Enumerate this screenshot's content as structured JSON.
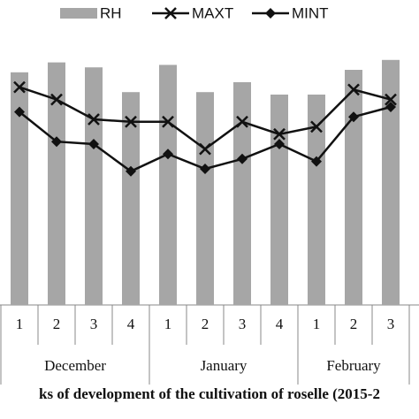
{
  "chart_data": {
    "type": "bar-line",
    "title": "ks of development of the cultivation of roselle (2015-2",
    "categories": [
      "1",
      "2",
      "3",
      "4",
      "1",
      "2",
      "3",
      "4",
      "1",
      "2",
      "3"
    ],
    "months": [
      {
        "name": "December",
        "count": 4
      },
      {
        "name": "January",
        "count": 4
      },
      {
        "name": "February",
        "count": 3
      }
    ],
    "ylim": [
      0,
      100
    ],
    "series": [
      {
        "name": "RH",
        "type": "bar",
        "color": "#a6a6a6",
        "values": [
          94,
          98,
          96,
          86,
          97,
          86,
          90,
          85,
          85,
          95,
          99
        ]
      },
      {
        "name": "MAXT",
        "type": "line",
        "marker": "x",
        "color": "#111111",
        "values": [
          88,
          83,
          75,
          74,
          74,
          63,
          74,
          69,
          72,
          87,
          83
        ]
      },
      {
        "name": "MINT",
        "type": "line",
        "marker": "diamond",
        "color": "#111111",
        "values": [
          78,
          66,
          65,
          54,
          61,
          55,
          59,
          65,
          58,
          76,
          80
        ]
      }
    ]
  }
}
